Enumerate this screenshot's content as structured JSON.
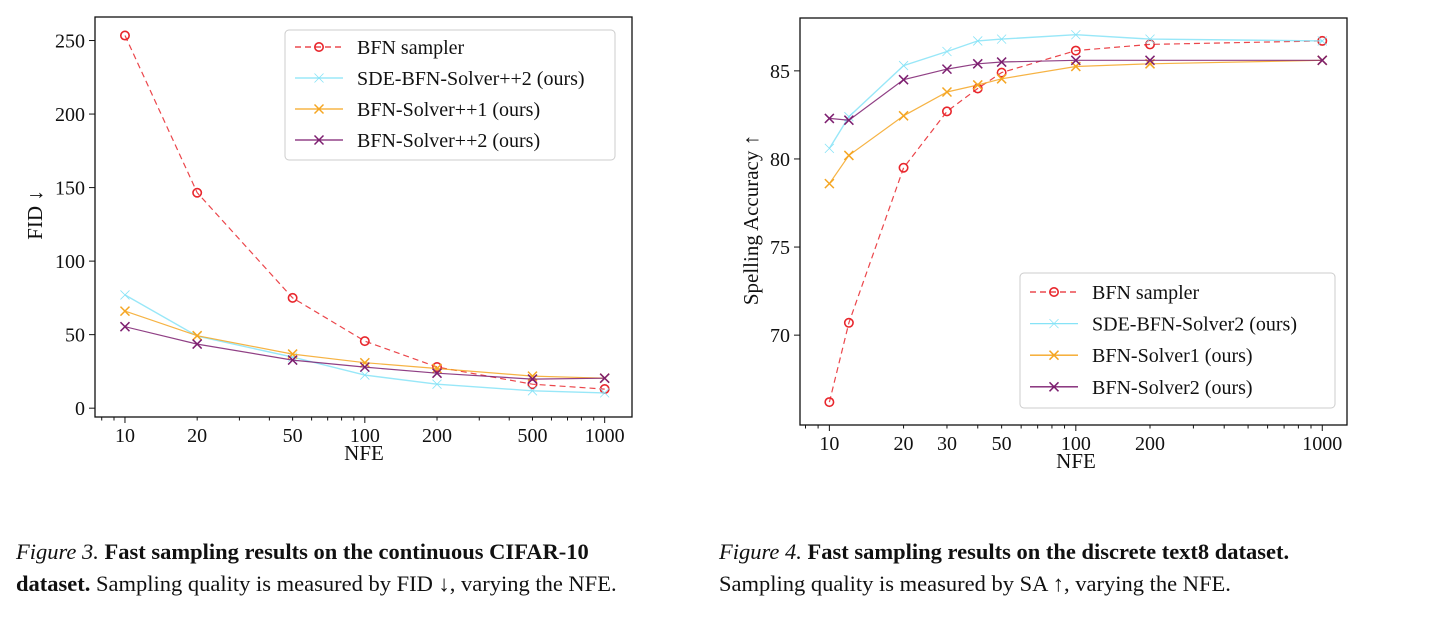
{
  "chart_data": [
    {
      "type": "line",
      "xscale": "log",
      "xlabel": "NFE",
      "ylabel": "FID ↓",
      "xlim": [
        7.5,
        1300
      ],
      "ylim": [
        -6,
        266
      ],
      "xticks": [
        10,
        20,
        50,
        100,
        200,
        500,
        1000
      ],
      "yticks": [
        0,
        50,
        100,
        150,
        200,
        250
      ],
      "grid": false,
      "legend_placement": "top-right",
      "x": [
        10,
        20,
        50,
        100,
        200,
        500,
        1000
      ],
      "series": [
        {
          "name": "BFN sampler",
          "color": "#e8262c",
          "style": "dashed",
          "marker": "circle",
          "values": [
            253.4,
            146.5,
            75.0,
            45.6,
            28.0,
            16.3,
            13.0
          ]
        },
        {
          "name": "SDE-BFN-Solver++2 (ours)",
          "color": "#86e3f7",
          "style": "solid",
          "marker": "x-light",
          "values": [
            77.0,
            49.0,
            34.7,
            22.5,
            16.3,
            11.8,
            10.4
          ]
        },
        {
          "name": "BFN-Solver++1 (ours)",
          "color": "#f5a623",
          "style": "solid",
          "marker": "x",
          "values": [
            66.0,
            49.3,
            36.8,
            30.9,
            27.0,
            21.8,
            20.4
          ]
        },
        {
          "name": "BFN-Solver++2 (ours)",
          "color": "#7d1f70",
          "style": "solid",
          "marker": "x",
          "values": [
            55.4,
            43.6,
            32.7,
            27.9,
            23.8,
            19.8,
            20.4
          ]
        }
      ]
    },
    {
      "type": "line",
      "xscale": "log",
      "xlabel": "NFE",
      "ylabel": "Spelling Accuracy ↑",
      "xlim": [
        7.6,
        1260
      ],
      "ylim": [
        64.9,
        88.0
      ],
      "xticks": [
        10,
        20,
        30,
        50,
        100,
        200,
        1000
      ],
      "yticks": [
        70,
        75,
        80,
        85
      ],
      "grid": false,
      "legend_placement": "lower-right",
      "x": [
        10,
        12,
        20,
        30,
        40,
        50,
        100,
        200,
        1000
      ],
      "series": [
        {
          "name": "BFN sampler",
          "color": "#e8262c",
          "style": "dashed",
          "marker": "circle",
          "values": [
            66.2,
            70.7,
            79.5,
            82.7,
            84.0,
            84.9,
            86.15,
            86.5,
            86.7
          ]
        },
        {
          "name": "SDE-BFN-Solver2 (ours)",
          "color": "#86e3f7",
          "style": "solid",
          "marker": "x-light",
          "values": [
            80.6,
            82.4,
            85.3,
            86.1,
            86.7,
            86.8,
            87.05,
            86.8,
            86.7
          ]
        },
        {
          "name": "BFN-Solver1 (ours)",
          "color": "#f5a623",
          "style": "solid",
          "marker": "x",
          "values": [
            78.6,
            80.2,
            82.45,
            83.8,
            84.2,
            84.55,
            85.25,
            85.4,
            85.6
          ]
        },
        {
          "name": "BFN-Solver2 (ours)",
          "color": "#7d1f70",
          "style": "solid",
          "marker": "x",
          "values": [
            82.3,
            82.2,
            84.5,
            85.1,
            85.4,
            85.5,
            85.6,
            85.6,
            85.6
          ]
        }
      ]
    }
  ],
  "captions": {
    "fig3_label": "Figure 3.",
    "fig3_title": "Fast sampling results on the continuous CIFAR-10",
    "fig3_title_cont": "dataset.",
    "fig3_text": "Sampling quality is measured by FID ↓, varying the NFE.",
    "fig4_label": "Figure 4.",
    "fig4_title": "Fast sampling results on the discrete text8 dataset.",
    "fig4_text": "Sampling quality is measured by SA ↑, varying the NFE."
  }
}
